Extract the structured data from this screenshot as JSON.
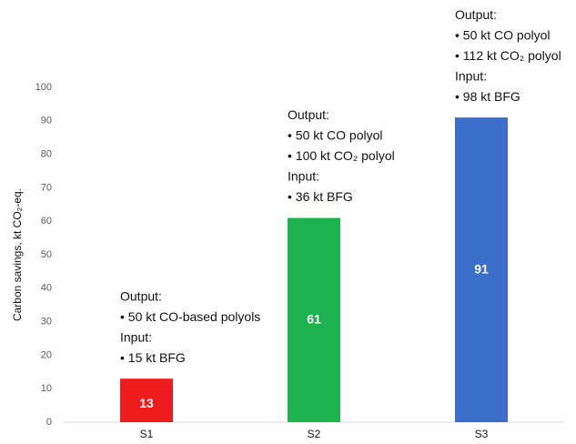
{
  "chart_data": {
    "type": "bar",
    "y_label": "Carbon savings, kt CO₂-eq.",
    "categories": [
      "S1",
      "S2",
      "S3"
    ],
    "values": [
      13,
      61,
      91
    ],
    "colors": [
      "#ee1c1c",
      "#1fb350",
      "#3b6fcb"
    ],
    "annotations": [
      [
        "Output:",
        "• 50 kt CO-based polyols",
        "Input:",
        "•  15 kt BFG"
      ],
      [
        "Output:",
        "• 50 kt CO polyol",
        "• 100 kt CO₂ polyol",
        "Input:",
        "•  36 kt BFG"
      ],
      [
        "Output:",
        "• 50 kt CO polyol",
        "• 112 kt CO₂ polyol",
        "Input:",
        "•  98 kt BFG"
      ]
    ],
    "ylim": [
      0,
      100
    ],
    "yticks": [
      0,
      10,
      20,
      30,
      40,
      50,
      60,
      70,
      80,
      90,
      100
    ],
    "grid": false
  }
}
